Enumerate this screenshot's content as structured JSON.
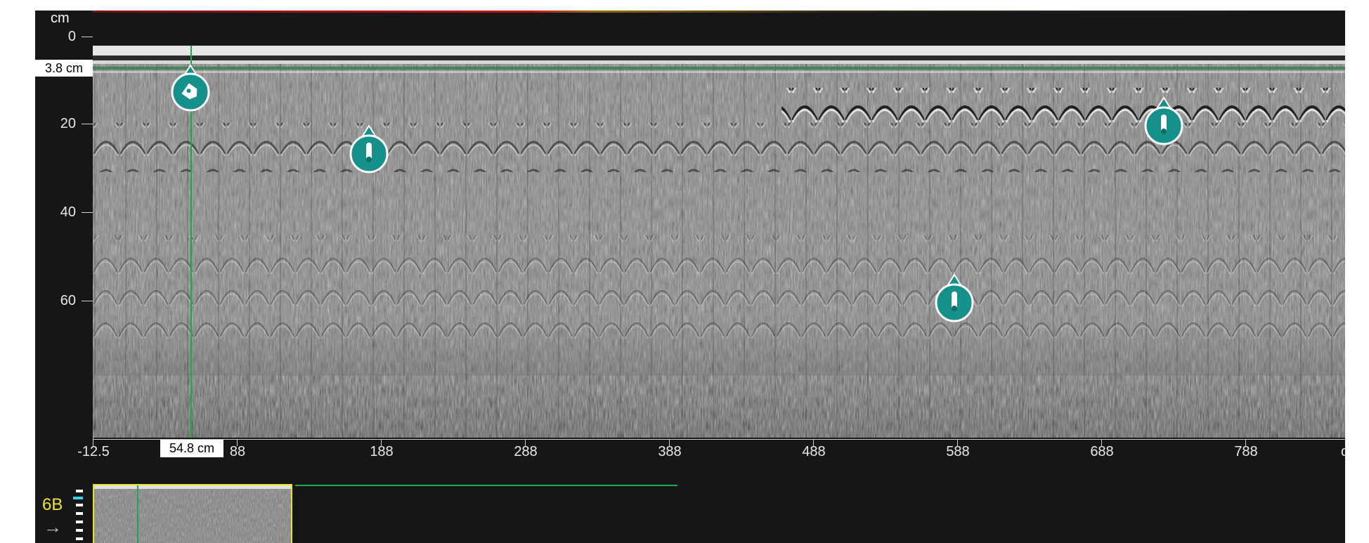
{
  "axes": {
    "y_unit": "cm",
    "y_ticks": [
      "0",
      "20",
      "40",
      "60"
    ],
    "x_ticks": [
      "-12.5",
      "88",
      "188",
      "288",
      "388",
      "488",
      "588",
      "688",
      "788"
    ],
    "x_unit_peek": "c"
  },
  "cursor": {
    "depth_readout": "3.8 cm",
    "position_readout": "54.8 cm"
  },
  "channel": {
    "label": "6B"
  },
  "markers": [
    {
      "type": "tag",
      "icon": "tag-icon"
    },
    {
      "type": "rebar",
      "icon": "rebar-icon"
    },
    {
      "type": "rebar",
      "icon": "rebar-icon"
    },
    {
      "type": "rebar",
      "icon": "rebar-icon"
    }
  ],
  "colors": {
    "background": "#161618",
    "cursor_line": "#1ea84a",
    "marker_fill": "#15908a",
    "channel_yellow": "#f2e227",
    "level_cyan": "#37d3e0"
  }
}
